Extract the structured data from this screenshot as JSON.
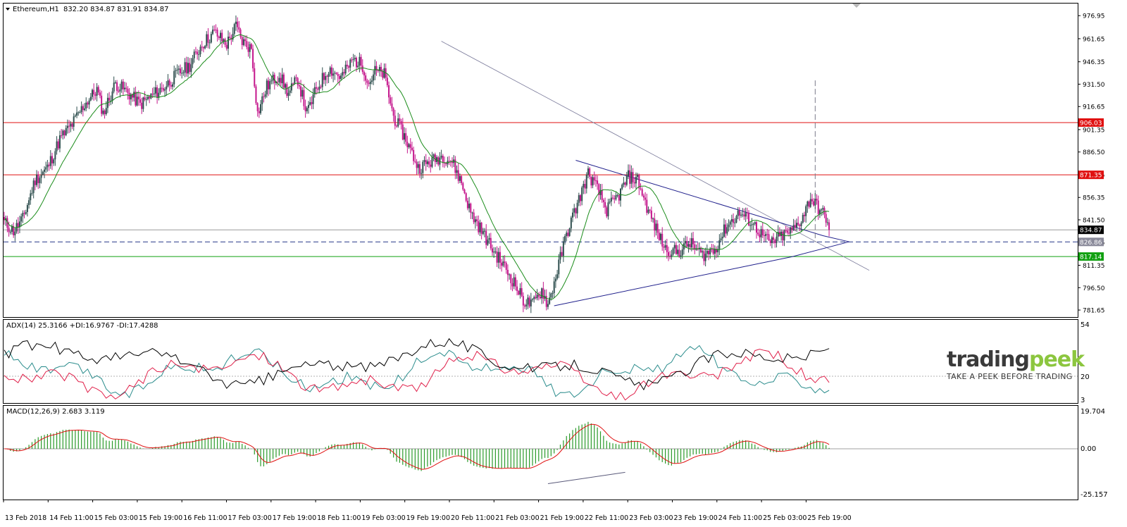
{
  "header": {
    "symbol": "Ethereum,H1",
    "ohlc": "832.20 834.87 831.91 834.87"
  },
  "adx_header": "ADX(14) 25.3166 +DI:16.9767 -DI:17.4288",
  "macd_header": "MACD(12,26,9) 2.683 3.119",
  "logo": {
    "part_a": "trading",
    "part_b": "peek",
    "tagline": "TAKE A PEEK BEFORE TRADING"
  },
  "colors": {
    "bull_candle": "#2f4f4f",
    "bear_candle": "#c4168c",
    "ma": "#1a8c1a",
    "resistance": "#e01010",
    "support": "#10a010",
    "trendline": "#20208c",
    "adx": "#000000",
    "plus_di": "#2a8c8c",
    "minus_di": "#e0204a",
    "macd_hist": "#2a9a2a",
    "macd_signal": "#e01010"
  },
  "chart_data": {
    "type": "candlestick",
    "instrument": "Ethereum",
    "timeframe": "H1",
    "price_axis": {
      "range": [
        777,
        985
      ],
      "ticks": [
        "976.95",
        "961.65",
        "946.35",
        "931.50",
        "916.65",
        "901.35",
        "886.50",
        "871.35",
        "856.35",
        "841.50",
        "826.65",
        "811.35",
        "796.50",
        "781.65"
      ]
    },
    "levels": [
      {
        "label": "906.03",
        "value": 906.03,
        "color": "#e01010",
        "style": "solid"
      },
      {
        "label": "871.35",
        "value": 871.35,
        "color": "#e01010",
        "style": "solid"
      },
      {
        "label": "834.87",
        "value": 834.87,
        "color": "#9a9a9a",
        "style": "solid",
        "current_price": true
      },
      {
        "label": "826.86",
        "value": 826.86,
        "color": "#2a3a8c",
        "style": "dashed"
      },
      {
        "label": "817.14",
        "value": 817.14,
        "color": "#10a010",
        "style": "solid"
      }
    ],
    "time_labels": [
      "13 Feb 2018",
      "14 Feb 11:00",
      "15 Feb 03:00",
      "15 Feb 19:00",
      "16 Feb 11:00",
      "17 Feb 03:00",
      "17 Feb 19:00",
      "18 Feb 11:00",
      "19 Feb 03:00",
      "19 Feb 19:00",
      "20 Feb 11:00",
      "21 Feb 03:00",
      "21 Feb 19:00",
      "22 Feb 11:00",
      "23 Feb 03:00",
      "23 Feb 19:00",
      "24 Feb 11:00",
      "25 Feb 03:00",
      "25 Feb 19:00"
    ],
    "path_keypoints": [
      [
        0,
        840
      ],
      [
        6,
        834
      ],
      [
        12,
        842
      ],
      [
        20,
        868
      ],
      [
        28,
        876
      ],
      [
        36,
        895
      ],
      [
        44,
        905
      ],
      [
        52,
        918
      ],
      [
        60,
        928
      ],
      [
        64,
        912
      ],
      [
        72,
        932
      ],
      [
        80,
        926
      ],
      [
        88,
        918
      ],
      [
        96,
        924
      ],
      [
        104,
        930
      ],
      [
        112,
        938
      ],
      [
        120,
        944
      ],
      [
        128,
        958
      ],
      [
        136,
        966
      ],
      [
        144,
        958
      ],
      [
        150,
        970
      ],
      [
        154,
        960
      ],
      [
        160,
        955
      ],
      [
        164,
        912
      ],
      [
        170,
        930
      ],
      [
        178,
        938
      ],
      [
        184,
        925
      ],
      [
        190,
        935
      ],
      [
        196,
        912
      ],
      [
        202,
        928
      ],
      [
        210,
        942
      ],
      [
        218,
        936
      ],
      [
        226,
        948
      ],
      [
        232,
        944
      ],
      [
        236,
        932
      ],
      [
        240,
        940
      ],
      [
        246,
        938
      ],
      [
        252,
        910
      ],
      [
        260,
        895
      ],
      [
        268,
        876
      ],
      [
        276,
        880
      ],
      [
        284,
        884
      ],
      [
        290,
        880
      ],
      [
        296,
        866
      ],
      [
        302,
        846
      ],
      [
        308,
        836
      ],
      [
        316,
        822
      ],
      [
        324,
        810
      ],
      [
        330,
        800
      ],
      [
        336,
        788
      ],
      [
        342,
        785
      ],
      [
        348,
        795
      ],
      [
        352,
        785
      ],
      [
        356,
        800
      ],
      [
        364,
        832
      ],
      [
        372,
        855
      ],
      [
        378,
        872
      ],
      [
        384,
        862
      ],
      [
        390,
        848
      ],
      [
        398,
        858
      ],
      [
        404,
        870
      ],
      [
        410,
        868
      ],
      [
        416,
        850
      ],
      [
        422,
        835
      ],
      [
        428,
        822
      ],
      [
        436,
        820
      ],
      [
        444,
        826
      ],
      [
        452,
        818
      ],
      [
        460,
        822
      ],
      [
        468,
        838
      ],
      [
        476,
        846
      ],
      [
        484,
        840
      ],
      [
        490,
        832
      ],
      [
        496,
        826
      ],
      [
        502,
        830
      ],
      [
        510,
        834
      ],
      [
        516,
        842
      ],
      [
        522,
        856
      ],
      [
        528,
        848
      ],
      [
        534,
        840
      ]
    ],
    "ma_period": 20,
    "triangle": {
      "upper_trendline": [
        [
          370,
          881
        ],
        [
          530,
          831
        ],
        [
          547,
          826.9
        ]
      ],
      "lower_trendline": [
        [
          356,
          784.5
        ],
        [
          510,
          817
        ],
        [
          547,
          826.9
        ]
      ],
      "outer_trendline": [
        [
          283,
          960
        ],
        [
          560,
          808
        ]
      ],
      "apex": [
        547,
        826.86
      ],
      "projection_marker_x": 525,
      "projection_range": [
        826.86,
        934
      ]
    },
    "adx": {
      "name": "ADX(14)",
      "value": 25.3166,
      "plus_di": 16.9767,
      "minus_di": 17.4288,
      "axis_ticks": [
        "54",
        "20",
        "3"
      ],
      "level_line": 20
    },
    "macd": {
      "name": "MACD(12,26,9)",
      "macd": 2.683,
      "signal": 3.119,
      "axis_ticks": [
        "19.704",
        "0.00",
        "-25.157"
      ],
      "divergence_line": [
        [
          352,
          -21.5
        ],
        [
          402,
          -14.5
        ]
      ]
    }
  }
}
